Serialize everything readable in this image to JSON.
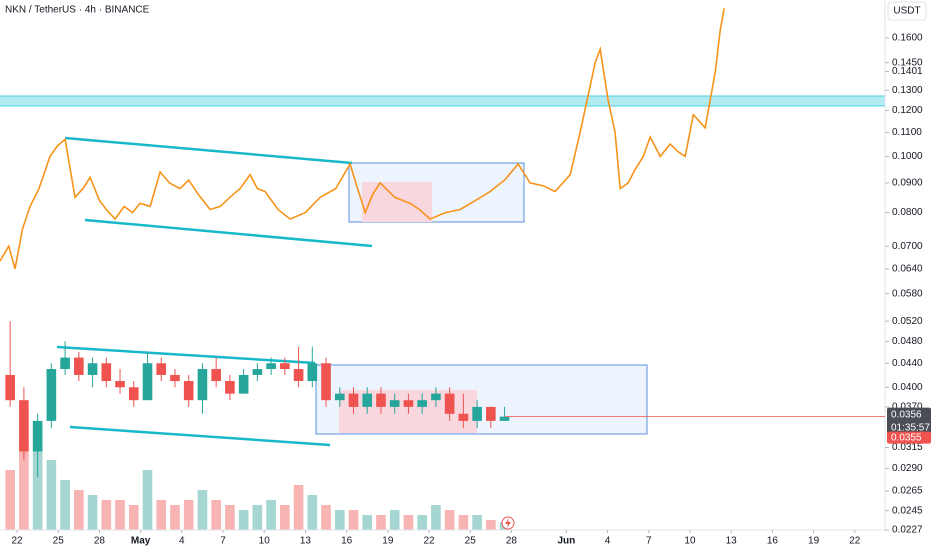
{
  "chart_data": {
    "type": "candlestick",
    "title": "NKN / TetherUS · 4h · BINANCE",
    "currency": "USDT",
    "log_scale": true,
    "up_color": "#26a69a",
    "down_color": "#ef5350",
    "volume_up_color": "#a5d6d2",
    "volume_down_color": "#f7b4b2",
    "x": [
      -1,
      0,
      1,
      2,
      3,
      4,
      5,
      6,
      7,
      8,
      9,
      10,
      11,
      12,
      13,
      14,
      15,
      16,
      17,
      18,
      19,
      20,
      21,
      22,
      23,
      24,
      25,
      26,
      27,
      28,
      29,
      30,
      31,
      32,
      33,
      34,
      35
    ],
    "open": [
      0.042,
      0.038,
      0.031,
      0.035,
      0.043,
      0.045,
      0.042,
      0.044,
      0.041,
      0.04,
      0.038,
      0.044,
      0.042,
      0.041,
      0.038,
      0.043,
      0.041,
      0.039,
      0.042,
      0.043,
      0.044,
      0.043,
      0.041,
      0.044,
      0.038,
      0.039,
      0.037,
      0.039,
      0.037,
      0.038,
      0.037,
      0.038,
      0.039,
      0.036,
      0.035,
      0.037,
      0.035
    ],
    "high": [
      0.052,
      0.04,
      0.036,
      0.044,
      0.048,
      0.046,
      0.045,
      0.045,
      0.043,
      0.041,
      0.046,
      0.045,
      0.043,
      0.042,
      0.044,
      0.045,
      0.042,
      0.043,
      0.044,
      0.045,
      0.045,
      0.047,
      0.047,
      0.045,
      0.04,
      0.04,
      0.04,
      0.04,
      0.039,
      0.039,
      0.039,
      0.04,
      0.04,
      0.039,
      0.038,
      0.037,
      0.037
    ],
    "low": [
      0.037,
      0.03,
      0.028,
      0.034,
      0.042,
      0.041,
      0.04,
      0.04,
      0.039,
      0.037,
      0.038,
      0.041,
      0.04,
      0.037,
      0.036,
      0.04,
      0.038,
      0.039,
      0.041,
      0.042,
      0.042,
      0.04,
      0.04,
      0.037,
      0.037,
      0.036,
      0.036,
      0.036,
      0.036,
      0.036,
      0.036,
      0.037,
      0.035,
      0.034,
      0.034,
      0.034,
      0.035
    ],
    "close": [
      0.038,
      0.031,
      0.035,
      0.043,
      0.045,
      0.042,
      0.044,
      0.041,
      0.04,
      0.038,
      0.044,
      0.042,
      0.041,
      0.038,
      0.043,
      0.041,
      0.039,
      0.042,
      0.043,
      0.044,
      0.043,
      0.041,
      0.044,
      0.038,
      0.039,
      0.037,
      0.039,
      0.037,
      0.038,
      0.037,
      0.038,
      0.039,
      0.036,
      0.035,
      0.037,
      0.035,
      0.0356
    ],
    "volume": [
      60,
      90,
      80,
      70,
      50,
      40,
      35,
      30,
      30,
      25,
      60,
      30,
      25,
      30,
      40,
      30,
      25,
      20,
      25,
      30,
      25,
      45,
      35,
      25,
      20,
      20,
      15,
      15,
      20,
      15,
      15,
      25,
      20,
      15,
      15,
      10,
      8
    ],
    "ylim": [
      0.0227,
      0.186
    ],
    "xlim": [
      -1.24,
      63.2
    ],
    "yticks": [
      {
        "value": 0.16,
        "label": "0.1600"
      },
      {
        "value": 0.145,
        "label": "0.1450"
      },
      {
        "value": 0.1401,
        "label": "0.1401"
      },
      {
        "value": 0.13,
        "label": "0.1300"
      },
      {
        "value": 0.12,
        "label": "0.1200"
      },
      {
        "value": 0.11,
        "label": "0.1100"
      },
      {
        "value": 0.1,
        "label": "0.1000"
      },
      {
        "value": 0.09,
        "label": "0.0900"
      },
      {
        "value": 0.08,
        "label": "0.0800"
      },
      {
        "value": 0.07,
        "label": "0.0700"
      },
      {
        "value": 0.064,
        "label": "0.0640"
      },
      {
        "value": 0.058,
        "label": "0.0580"
      },
      {
        "value": 0.052,
        "label": "0.0520"
      },
      {
        "value": 0.048,
        "label": "0.0480"
      },
      {
        "value": 0.044,
        "label": "0.0440"
      },
      {
        "value": 0.04,
        "label": "0.0400"
      },
      {
        "value": 0.037,
        "label": "0.0370"
      },
      {
        "value": 0.0315,
        "label": "0.0315"
      },
      {
        "value": 0.029,
        "label": "0.0290"
      },
      {
        "value": 0.0265,
        "label": "0.0265"
      },
      {
        "value": 0.0245,
        "label": "0.0245"
      },
      {
        "value": 0.0227,
        "label": "0.0227"
      }
    ],
    "xticks": [
      {
        "value": 0,
        "label": "22"
      },
      {
        "value": 3,
        "label": "25"
      },
      {
        "value": 6,
        "label": "28"
      },
      {
        "value": 9,
        "label": "May"
      },
      {
        "value": 12,
        "label": "4"
      },
      {
        "value": 15,
        "label": "7"
      },
      {
        "value": 18,
        "label": "10"
      },
      {
        "value": 21,
        "label": "13"
      },
      {
        "value": 24,
        "label": "16"
      },
      {
        "value": 27,
        "label": "19"
      },
      {
        "value": 30,
        "label": "22"
      },
      {
        "value": 33,
        "label": "25"
      },
      {
        "value": 36,
        "label": "28"
      },
      {
        "value": 40,
        "label": "Jun"
      },
      {
        "value": 43,
        "label": "4"
      },
      {
        "value": 46,
        "label": "7"
      },
      {
        "value": 49,
        "label": "10"
      },
      {
        "value": 52,
        "label": "13"
      },
      {
        "value": 55,
        "label": "16"
      },
      {
        "value": 58,
        "label": "19"
      },
      {
        "value": 61,
        "label": "22"
      }
    ],
    "overlay": {
      "type": "line",
      "color": "#f7931a",
      "x": [
        -1.24,
        -0.6,
        -0.15,
        0.4,
        0.95,
        1.6,
        2.4,
        2.9,
        3.5,
        4.22,
        4.8,
        5.32,
        6.0,
        6.5,
        7.14,
        7.8,
        8.4,
        8.96,
        9.7,
        10.42,
        11.1,
        11.87,
        12.5,
        13.2,
        14.06,
        14.8,
        15.5,
        16.24,
        16.97,
        17.5,
        18.06,
        19.0,
        19.88,
        21.0,
        22.07,
        23.2,
        24.25,
        24.8,
        25.35,
        25.9,
        26.44,
        27.5,
        28.62,
        29.3,
        30.08,
        31.2,
        32.27,
        33.4,
        34.45,
        35.5,
        36.49,
        37.36,
        38.3,
        39.18,
        40.28,
        41.0,
        42.1,
        42.46,
        43.04,
        43.55,
        43.92,
        44.5,
        45.01,
        45.6,
        46.1,
        46.83,
        47.56,
        48.1,
        48.65,
        49.24,
        50.11,
        50.84,
        51.2,
        51.49
      ],
      "values": [
        0.066,
        0.07,
        0.064,
        0.075,
        0.082,
        0.088,
        0.1,
        0.104,
        0.107,
        0.085,
        0.088,
        0.092,
        0.084,
        0.081,
        0.078,
        0.082,
        0.08,
        0.083,
        0.082,
        0.094,
        0.09,
        0.088,
        0.091,
        0.086,
        0.081,
        0.082,
        0.085,
        0.088,
        0.093,
        0.088,
        0.087,
        0.081,
        0.078,
        0.08,
        0.085,
        0.088,
        0.097,
        0.088,
        0.08,
        0.086,
        0.09,
        0.085,
        0.083,
        0.081,
        0.078,
        0.08,
        0.081,
        0.084,
        0.087,
        0.091,
        0.097,
        0.09,
        0.089,
        0.087,
        0.093,
        0.11,
        0.145,
        0.153,
        0.125,
        0.11,
        0.088,
        0.09,
        0.095,
        0.1,
        0.108,
        0.1,
        0.105,
        0.102,
        0.1,
        0.118,
        0.112,
        0.14,
        0.165,
        0.18
      ]
    },
    "price_labels": {
      "last": "0.0356",
      "countdown": "01:35:57",
      "bid": "0.0355"
    }
  }
}
